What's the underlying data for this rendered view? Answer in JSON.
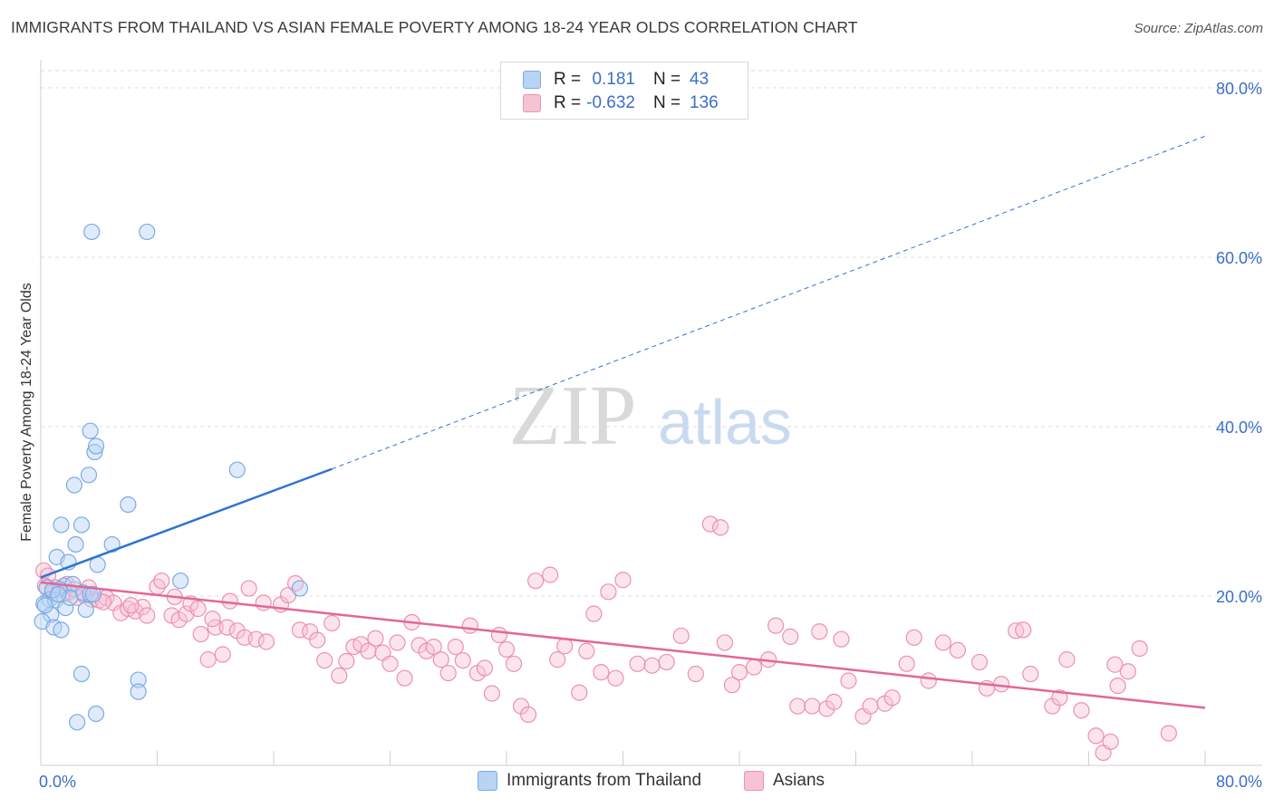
{
  "title": "IMMIGRANTS FROM THAILAND VS ASIAN FEMALE POVERTY AMONG 18-24 YEAR OLDS CORRELATION CHART",
  "source": "Source: ZipAtlas.com",
  "watermark": {
    "zip": "ZIP",
    "atlas": "atlas"
  },
  "colors": {
    "blue": "#7aabe6",
    "blue_fill": "#b9d3f3",
    "blue_line": "#2f74d0",
    "pink": "#ee90b0",
    "pink_fill": "#f6c3d5",
    "pink_line": "#e2679a",
    "axis_text": "#3b6fc8",
    "grid": "#dddddd"
  },
  "legend_top": {
    "rows": [
      {
        "r_label": "R =",
        "r_value": "0.181",
        "n_label": "N =",
        "n_value": "43"
      },
      {
        "r_label": "R =",
        "r_value": "-0.632",
        "n_label": "N =",
        "n_value": "136"
      }
    ]
  },
  "legend_bottom": {
    "series1": "Immigrants from Thailand",
    "series2": "Asians"
  },
  "chart_data": {
    "type": "scatter",
    "title": "IMMIGRANTS FROM THAILAND VS ASIAN FEMALE POVERTY AMONG 18-24 YEAR OLDS CORRELATION CHART",
    "xlabel": "",
    "ylabel": "Female Poverty Among 18-24 Year Olds",
    "xlim": [
      0,
      80
    ],
    "ylim": [
      0,
      80
    ],
    "x_tick_labels": [
      "0.0%",
      "80.0%"
    ],
    "y_tick_labels": [
      {
        "value": 20,
        "label": "20.0%"
      },
      {
        "value": 40,
        "label": "40.0%"
      },
      {
        "value": 60,
        "label": "60.0%"
      },
      {
        "value": 80,
        "label": "80.0%"
      }
    ],
    "grid": true,
    "legend_position": "top-center",
    "series": [
      {
        "name": "Immigrants from Thailand",
        "r": 0.181,
        "n": 43,
        "trend": {
          "x_start": 0,
          "y_start": 22.2,
          "x_solid_end": 20,
          "y_solid_end": 35.0,
          "x_end": 80,
          "y_end": 74.3
        },
        "points": [
          [
            3.5,
            63.0
          ],
          [
            7.3,
            63.0
          ],
          [
            3.4,
            39.5
          ],
          [
            3.7,
            37.0
          ],
          [
            3.8,
            37.7
          ],
          [
            3.3,
            34.3
          ],
          [
            2.3,
            33.1
          ],
          [
            6.0,
            30.8
          ],
          [
            13.5,
            34.9
          ],
          [
            1.4,
            28.4
          ],
          [
            2.8,
            28.4
          ],
          [
            2.4,
            26.1
          ],
          [
            4.9,
            26.1
          ],
          [
            1.1,
            24.6
          ],
          [
            1.9,
            24.0
          ],
          [
            3.9,
            23.7
          ],
          [
            9.6,
            21.8
          ],
          [
            17.8,
            20.9
          ],
          [
            1.6,
            21.2
          ],
          [
            2.2,
            21.4
          ],
          [
            0.4,
            21.0
          ],
          [
            1.3,
            20.8
          ],
          [
            2.9,
            20.4
          ],
          [
            3.4,
            20.2
          ],
          [
            3.6,
            20.2
          ],
          [
            0.6,
            19.6
          ],
          [
            0.2,
            19.1
          ],
          [
            1.0,
            19.5
          ],
          [
            1.7,
            18.6
          ],
          [
            3.1,
            18.4
          ],
          [
            0.7,
            17.8
          ],
          [
            0.1,
            17.0
          ],
          [
            0.9,
            16.3
          ],
          [
            1.4,
            16.0
          ],
          [
            0.3,
            18.9
          ],
          [
            2.8,
            10.8
          ],
          [
            6.7,
            10.1
          ],
          [
            6.7,
            8.7
          ],
          [
            2.5,
            5.1
          ],
          [
            3.8,
            6.1
          ],
          [
            0.8,
            20.7
          ],
          [
            2.0,
            19.8
          ],
          [
            1.2,
            20.2
          ]
        ]
      },
      {
        "name": "Asians",
        "r": -0.632,
        "n": 136,
        "trend": {
          "x_start": 0,
          "y_start": 21.6,
          "x_end": 80,
          "y_end": 6.8
        },
        "points": [
          [
            0.2,
            23.0
          ],
          [
            0.5,
            22.4
          ],
          [
            1.0,
            21.0
          ],
          [
            1.5,
            20.2
          ],
          [
            2.0,
            20.5
          ],
          [
            2.5,
            19.8
          ],
          [
            3.0,
            20.1
          ],
          [
            3.5,
            19.6
          ],
          [
            4.0,
            19.5
          ],
          [
            4.5,
            19.8
          ],
          [
            5.0,
            19.2
          ],
          [
            5.5,
            18.0
          ],
          [
            6.0,
            18.5
          ],
          [
            6.5,
            18.2
          ],
          [
            7.0,
            18.7
          ],
          [
            7.3,
            17.7
          ],
          [
            8.0,
            21.1
          ],
          [
            8.3,
            21.8
          ],
          [
            9.0,
            17.7
          ],
          [
            9.5,
            17.2
          ],
          [
            10.0,
            17.9
          ],
          [
            10.3,
            19.1
          ],
          [
            10.8,
            18.5
          ],
          [
            11.0,
            15.5
          ],
          [
            11.5,
            12.5
          ],
          [
            12.0,
            16.3
          ],
          [
            12.5,
            13.1
          ],
          [
            12.8,
            16.3
          ],
          [
            13.5,
            15.9
          ],
          [
            14.0,
            15.1
          ],
          [
            14.3,
            20.9
          ],
          [
            14.8,
            14.9
          ],
          [
            15.3,
            19.2
          ],
          [
            15.5,
            14.6
          ],
          [
            16.5,
            19.0
          ],
          [
            17.0,
            20.1
          ],
          [
            17.5,
            21.5
          ],
          [
            17.8,
            16.0
          ],
          [
            18.5,
            15.8
          ],
          [
            19.0,
            14.8
          ],
          [
            19.5,
            12.4
          ],
          [
            20.0,
            16.8
          ],
          [
            20.5,
            10.6
          ],
          [
            21.0,
            12.3
          ],
          [
            21.5,
            14.0
          ],
          [
            22.0,
            14.3
          ],
          [
            22.5,
            13.5
          ],
          [
            23.0,
            15.0
          ],
          [
            23.5,
            13.3
          ],
          [
            24.0,
            12.0
          ],
          [
            24.5,
            14.5
          ],
          [
            25.0,
            10.3
          ],
          [
            25.5,
            16.9
          ],
          [
            26.0,
            14.2
          ],
          [
            26.5,
            13.5
          ],
          [
            27.0,
            14.0
          ],
          [
            27.5,
            12.5
          ],
          [
            28.0,
            10.9
          ],
          [
            28.5,
            14.0
          ],
          [
            29.0,
            12.4
          ],
          [
            29.5,
            16.5
          ],
          [
            30.0,
            10.9
          ],
          [
            30.5,
            11.5
          ],
          [
            31.0,
            8.5
          ],
          [
            31.5,
            15.4
          ],
          [
            32.0,
            13.7
          ],
          [
            32.5,
            12.0
          ],
          [
            33.0,
            7.0
          ],
          [
            33.5,
            6.0
          ],
          [
            34.0,
            21.8
          ],
          [
            35.0,
            22.5
          ],
          [
            35.5,
            12.5
          ],
          [
            36.0,
            14.1
          ],
          [
            37.0,
            8.6
          ],
          [
            37.5,
            13.5
          ],
          [
            38.0,
            17.9
          ],
          [
            38.5,
            11.0
          ],
          [
            39.0,
            20.5
          ],
          [
            39.5,
            10.3
          ],
          [
            40.0,
            21.9
          ],
          [
            41.0,
            12.0
          ],
          [
            42.0,
            11.8
          ],
          [
            43.0,
            12.2
          ],
          [
            44.0,
            15.3
          ],
          [
            45.0,
            10.8
          ],
          [
            46.0,
            28.5
          ],
          [
            46.7,
            28.1
          ],
          [
            47.0,
            14.5
          ],
          [
            47.5,
            9.5
          ],
          [
            48.0,
            11.0
          ],
          [
            49.0,
            11.6
          ],
          [
            50.0,
            12.5
          ],
          [
            50.5,
            16.5
          ],
          [
            51.5,
            15.2
          ],
          [
            52.0,
            7.0
          ],
          [
            53.0,
            7.0
          ],
          [
            53.5,
            15.8
          ],
          [
            54.0,
            6.7
          ],
          [
            54.5,
            7.5
          ],
          [
            55.0,
            14.9
          ],
          [
            55.5,
            10.0
          ],
          [
            56.5,
            5.8
          ],
          [
            57.0,
            7.0
          ],
          [
            58.0,
            7.3
          ],
          [
            58.5,
            8.0
          ],
          [
            59.5,
            12.0
          ],
          [
            60.0,
            15.1
          ],
          [
            61.0,
            10.0
          ],
          [
            62.0,
            14.5
          ],
          [
            63.0,
            13.6
          ],
          [
            64.5,
            12.2
          ],
          [
            65.0,
            9.1
          ],
          [
            66.0,
            9.6
          ],
          [
            67.0,
            15.9
          ],
          [
            67.5,
            16.0
          ],
          [
            68.0,
            10.8
          ],
          [
            69.5,
            7.0
          ],
          [
            70.0,
            8.0
          ],
          [
            70.5,
            12.5
          ],
          [
            71.5,
            6.5
          ],
          [
            72.5,
            3.5
          ],
          [
            73.0,
            1.5
          ],
          [
            73.5,
            2.8
          ],
          [
            73.8,
            11.9
          ],
          [
            74.0,
            9.4
          ],
          [
            74.7,
            11.1
          ],
          [
            75.5,
            13.8
          ],
          [
            77.5,
            3.8
          ],
          [
            0.3,
            21.2
          ],
          [
            0.8,
            20.4
          ],
          [
            1.8,
            21.4
          ],
          [
            2.3,
            20.8
          ],
          [
            3.3,
            21.0
          ],
          [
            4.3,
            19.3
          ],
          [
            6.2,
            18.9
          ],
          [
            9.2,
            19.9
          ],
          [
            11.8,
            17.3
          ],
          [
            13.0,
            19.4
          ]
        ]
      }
    ]
  }
}
